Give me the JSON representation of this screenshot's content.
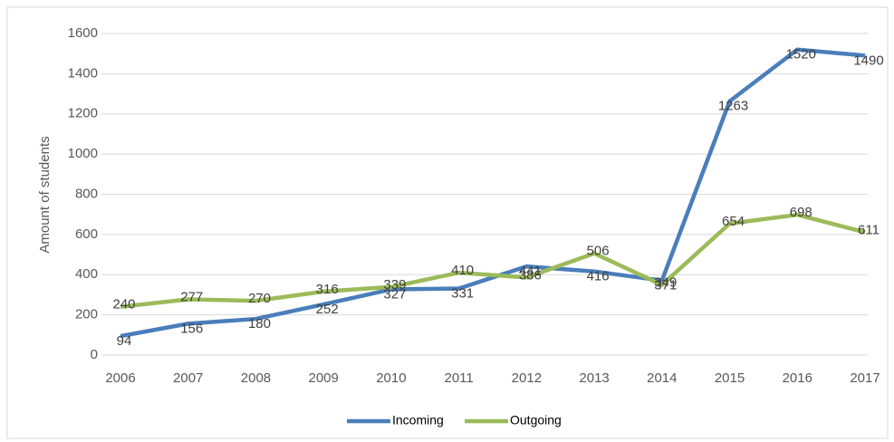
{
  "chart_data": {
    "type": "line",
    "y_label": "Amount of students",
    "categories": [
      "2006",
      "2007",
      "2008",
      "2009",
      "2010",
      "2011",
      "2012",
      "2013",
      "2014",
      "2015",
      "2016",
      "2017"
    ],
    "series": [
      {
        "name": "Incoming",
        "color": "#4a7ebb",
        "values": [
          94,
          156,
          180,
          252,
          327,
          331,
          441,
          416,
          371,
          1263,
          1520,
          1490
        ]
      },
      {
        "name": "Outgoing",
        "color": "#9bbb59",
        "values": [
          240,
          277,
          270,
          316,
          339,
          410,
          386,
          506,
          349,
          654,
          698,
          611
        ]
      }
    ],
    "ylim": [
      0,
      1600
    ],
    "yticks": [
      0,
      200,
      400,
      600,
      800,
      1000,
      1200,
      1400,
      1600
    ],
    "grid": true,
    "legend": "bottom"
  }
}
